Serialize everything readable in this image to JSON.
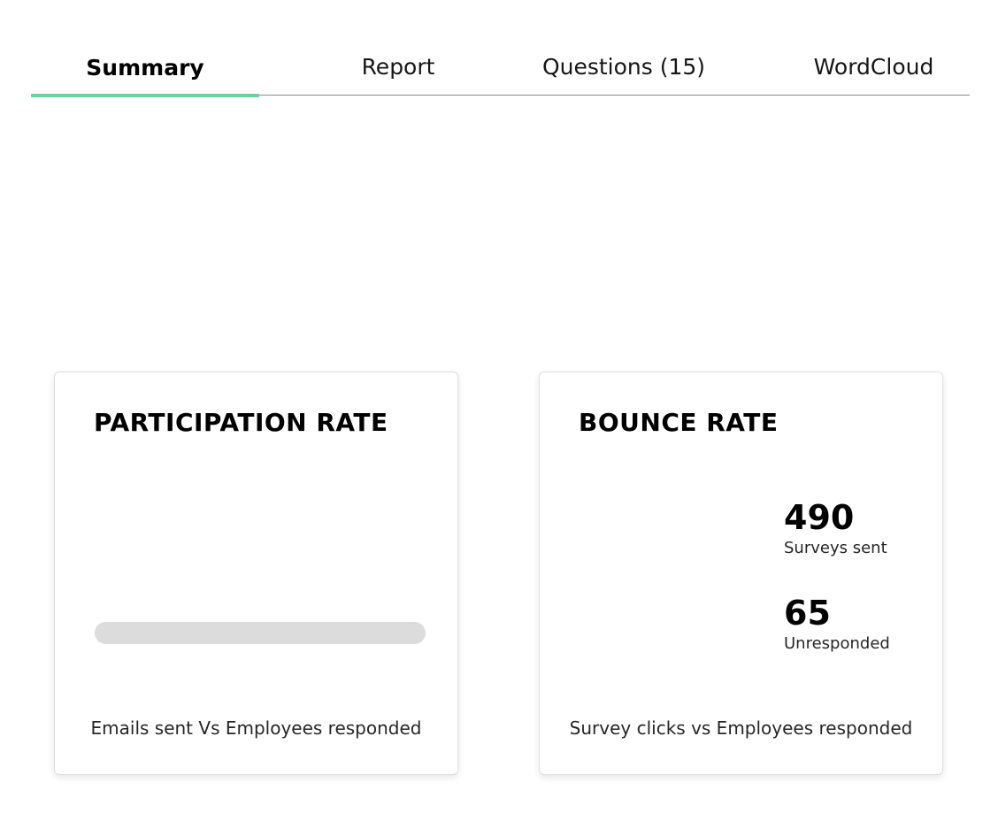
{
  "tabs": [
    {
      "label": "Summary",
      "active": true
    },
    {
      "label": "Report",
      "active": false
    },
    {
      "label": "Questions (15)",
      "active": false
    },
    {
      "label": "WordCloud",
      "active": false
    }
  ],
  "colors": {
    "accent": "#6fcf97",
    "progress_track": "#dcdcdc"
  },
  "participation": {
    "title": "PARTICIPATION RATE",
    "progress_fraction": 0,
    "footer": "Emails sent Vs Employees responded"
  },
  "bounce": {
    "title": "BOUNCE RATE",
    "surveys_sent_value": "490",
    "surveys_sent_label": "Surveys sent",
    "unresponded_value": "65",
    "unresponded_label": "Unresponded",
    "footer": "Survey clicks vs Employees responded"
  }
}
